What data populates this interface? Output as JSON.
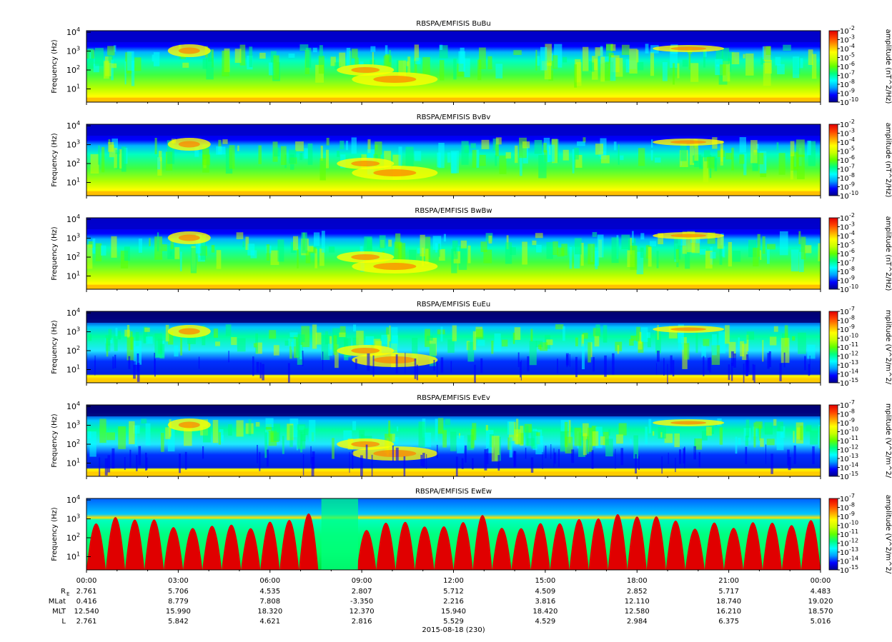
{
  "colors": {
    "colormap": [
      "#00008b",
      "#0000ff",
      "#00a0ff",
      "#00ffff",
      "#00ff80",
      "#60ff00",
      "#c8ff00",
      "#ffff00",
      "#ffa000",
      "#ff4000",
      "#e00000"
    ],
    "text": "#000000"
  },
  "chart_data": [
    {
      "type": "heatmap",
      "title": "RBSPA/EMFISIS  BuBu",
      "ylabel": "Frequency (Hz)",
      "y_ticks": [
        "10",
        "10",
        "10",
        "10"
      ],
      "y_tick_exps": [
        "1",
        "2",
        "3",
        "4"
      ],
      "y_scale": "log",
      "ylim": [
        2,
        12000
      ],
      "colorbar_label": "amplitude (nT^2/Hz)",
      "colorbar_exps": [
        "-2",
        "-3",
        "-4",
        "-5",
        "-6",
        "-7",
        "-8",
        "-9",
        "-10"
      ],
      "clim": [
        "1e-10",
        "1e-2"
      ],
      "style": "b"
    },
    {
      "type": "heatmap",
      "title": "RBSPA/EMFISIS  BvBv",
      "ylabel": "Frequency (Hz)",
      "y_ticks": [
        "10",
        "10",
        "10",
        "10"
      ],
      "y_tick_exps": [
        "1",
        "2",
        "3",
        "4"
      ],
      "y_scale": "log",
      "ylim": [
        2,
        12000
      ],
      "colorbar_label": "amplitude (nT^2/Hz)",
      "colorbar_exps": [
        "-2",
        "-3",
        "-4",
        "-5",
        "-6",
        "-7",
        "-8",
        "-9",
        "-10"
      ],
      "clim": [
        "1e-10",
        "1e-2"
      ],
      "style": "b"
    },
    {
      "type": "heatmap",
      "title": "RBSPA/EMFISIS  BwBw",
      "ylabel": "Frequency (Hz)",
      "y_ticks": [
        "10",
        "10",
        "10",
        "10"
      ],
      "y_tick_exps": [
        "1",
        "2",
        "3",
        "4"
      ],
      "y_scale": "log",
      "ylim": [
        2,
        12000
      ],
      "colorbar_label": "amplitude (nT^2/Hz)",
      "colorbar_exps": [
        "-2",
        "-3",
        "-4",
        "-5",
        "-6",
        "-7",
        "-8",
        "-9",
        "-10"
      ],
      "clim": [
        "1e-10",
        "1e-2"
      ],
      "style": "b"
    },
    {
      "type": "heatmap",
      "title": "RBSPA/EMFISIS  EuEu",
      "ylabel": "Frequency (Hz)",
      "y_ticks": [
        "10",
        "10",
        "10",
        "10"
      ],
      "y_tick_exps": [
        "1",
        "2",
        "3",
        "4"
      ],
      "y_scale": "log",
      "ylim": [
        2,
        12000
      ],
      "colorbar_label": "mplitude (V^2/m^2/",
      "colorbar_exps": [
        "-7",
        "-8",
        "-9",
        "-10",
        "-11",
        "-12",
        "-13",
        "-14",
        "-15"
      ],
      "clim": [
        "1e-15",
        "1e-7"
      ],
      "style": "e"
    },
    {
      "type": "heatmap",
      "title": "RBSPA/EMFISIS  EvEv",
      "ylabel": "Frequency (Hz)",
      "y_ticks": [
        "10",
        "10",
        "10",
        "10"
      ],
      "y_tick_exps": [
        "1",
        "2",
        "3",
        "4"
      ],
      "y_scale": "log",
      "ylim": [
        2,
        12000
      ],
      "colorbar_label": "mplitude (V^2/m^2/",
      "colorbar_exps": [
        "-7",
        "-8",
        "-9",
        "-10",
        "-11",
        "-12",
        "-13",
        "-14",
        "-15"
      ],
      "clim": [
        "1e-15",
        "1e-7"
      ],
      "style": "e"
    },
    {
      "type": "heatmap",
      "title": "RBSPA/EMFISIS  EwEw",
      "ylabel": "Frequency (Hz)",
      "y_ticks": [
        "10",
        "10",
        "10",
        "10"
      ],
      "y_tick_exps": [
        "1",
        "2",
        "3",
        "4"
      ],
      "y_scale": "log",
      "ylim": [
        2,
        12000
      ],
      "colorbar_label": "amplitude (V^2/m^2/",
      "colorbar_exps": [
        "-7",
        "-8",
        "-9",
        "-10",
        "-11",
        "-12",
        "-13",
        "-14",
        "-15"
      ],
      "clim": [
        "1e-15",
        "1e-7"
      ],
      "style": "w"
    }
  ],
  "x_axis": {
    "tick_labels": [
      "00:00",
      "03:00",
      "06:00",
      "09:00",
      "12:00",
      "15:00",
      "18:00",
      "21:00",
      "00:00"
    ],
    "xlabel": "2015-08-18 (230)",
    "ephemeris": [
      {
        "label": "R",
        "subscript": "E",
        "values": [
          "2.761",
          "5.706",
          "4.535",
          "2.807",
          "5.712",
          "4.509",
          "2.852",
          "5.717",
          "4.483"
        ]
      },
      {
        "label": "MLat",
        "values": [
          "0.416",
          "8.779",
          "7.808",
          "-3.350",
          "2.216",
          "3.816",
          "12.110",
          "18.740",
          "19.020"
        ]
      },
      {
        "label": "MLT",
        "values": [
          "12.540",
          "15.990",
          "18.320",
          "12.370",
          "15.940",
          "18.420",
          "12.580",
          "16.210",
          "18.570"
        ]
      },
      {
        "label": "L",
        "values": [
          "2.761",
          "5.842",
          "4.621",
          "2.816",
          "5.529",
          "4.529",
          "2.984",
          "6.375",
          "5.016"
        ]
      }
    ]
  }
}
